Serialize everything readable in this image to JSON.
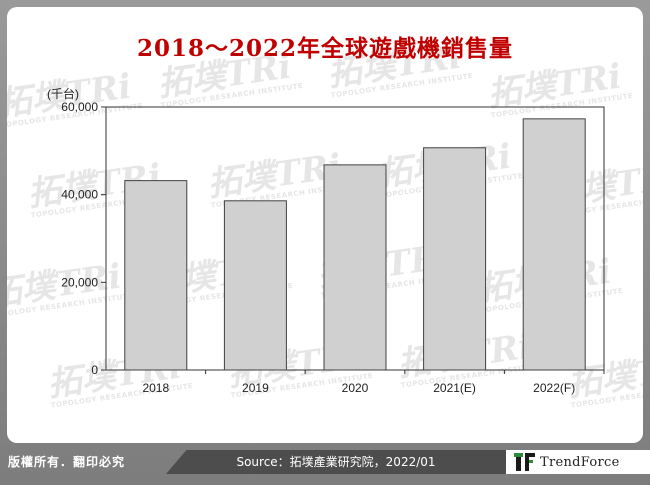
{
  "chart_data": {
    "type": "bar",
    "title": "2018～2022年全球遊戲機銷售量",
    "unit_label": "(千台)",
    "categories": [
      "2018",
      "2019",
      "2020",
      "2021(E)",
      "2022(F)"
    ],
    "values": [
      43200,
      38600,
      46800,
      50700,
      57300
    ],
    "ylim": [
      0,
      60000
    ],
    "yticks": [
      {
        "value": 0,
        "label": "0"
      },
      {
        "value": 20000,
        "label": "20,000"
      },
      {
        "value": 40000,
        "label": "40,000"
      },
      {
        "value": 60000,
        "label": "60,000"
      }
    ],
    "bar_color": "#d0d0d0",
    "bar_stroke": "#404040",
    "grid": false
  },
  "footer": {
    "copyright": "版權所有．翻印必究",
    "source": "Source：拓墣產業研究院，2022/01",
    "brand": "TrendForce"
  },
  "watermark": {
    "text": "拓墣TRi",
    "subtext": "TOPOLOGY RESEARCH INSTITUTE"
  },
  "colors": {
    "title": "#c00000",
    "frame": "#8c8c8c",
    "source_box": "#4d4d4d",
    "brand_accent": "#2e8b3a"
  }
}
